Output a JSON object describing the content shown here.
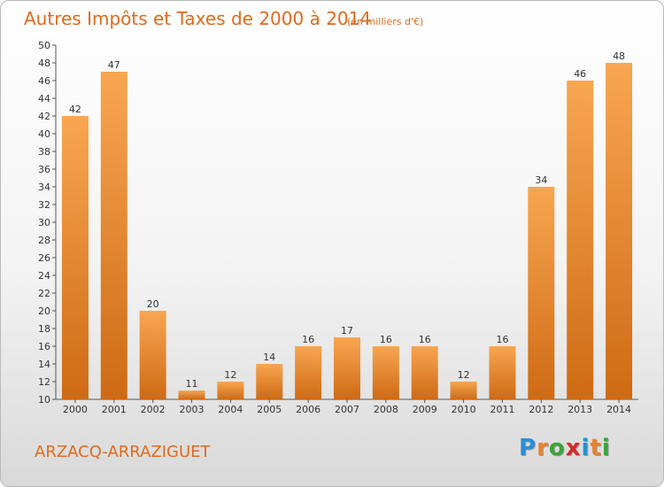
{
  "chart_data": {
    "type": "bar",
    "title": "Autres Impôts et Taxes de 2000 à 2014",
    "subtitle": "(en milliers d'€)",
    "categories": [
      "2000",
      "2001",
      "2002",
      "2003",
      "2004",
      "2005",
      "2006",
      "2007",
      "2008",
      "2009",
      "2010",
      "2011",
      "2012",
      "2013",
      "2014"
    ],
    "values": [
      42,
      47,
      20,
      11,
      12,
      14,
      16,
      17,
      16,
      16,
      12,
      16,
      34,
      46,
      48
    ],
    "ylim": [
      10,
      50
    ],
    "ytick_step": 2,
    "grid": false,
    "bar_color": "#e8832c"
  },
  "commune": "ARZACQ-ARRAZIGUET",
  "logo": {
    "letters": [
      "P",
      "r",
      "o",
      "x",
      "i",
      "t",
      "i"
    ],
    "colors": [
      "#2a8fd6",
      "#e8832c",
      "#3aa53a",
      "#d62a2a",
      "#2a8fd6",
      "#e8832c",
      "#3aa53a"
    ]
  }
}
